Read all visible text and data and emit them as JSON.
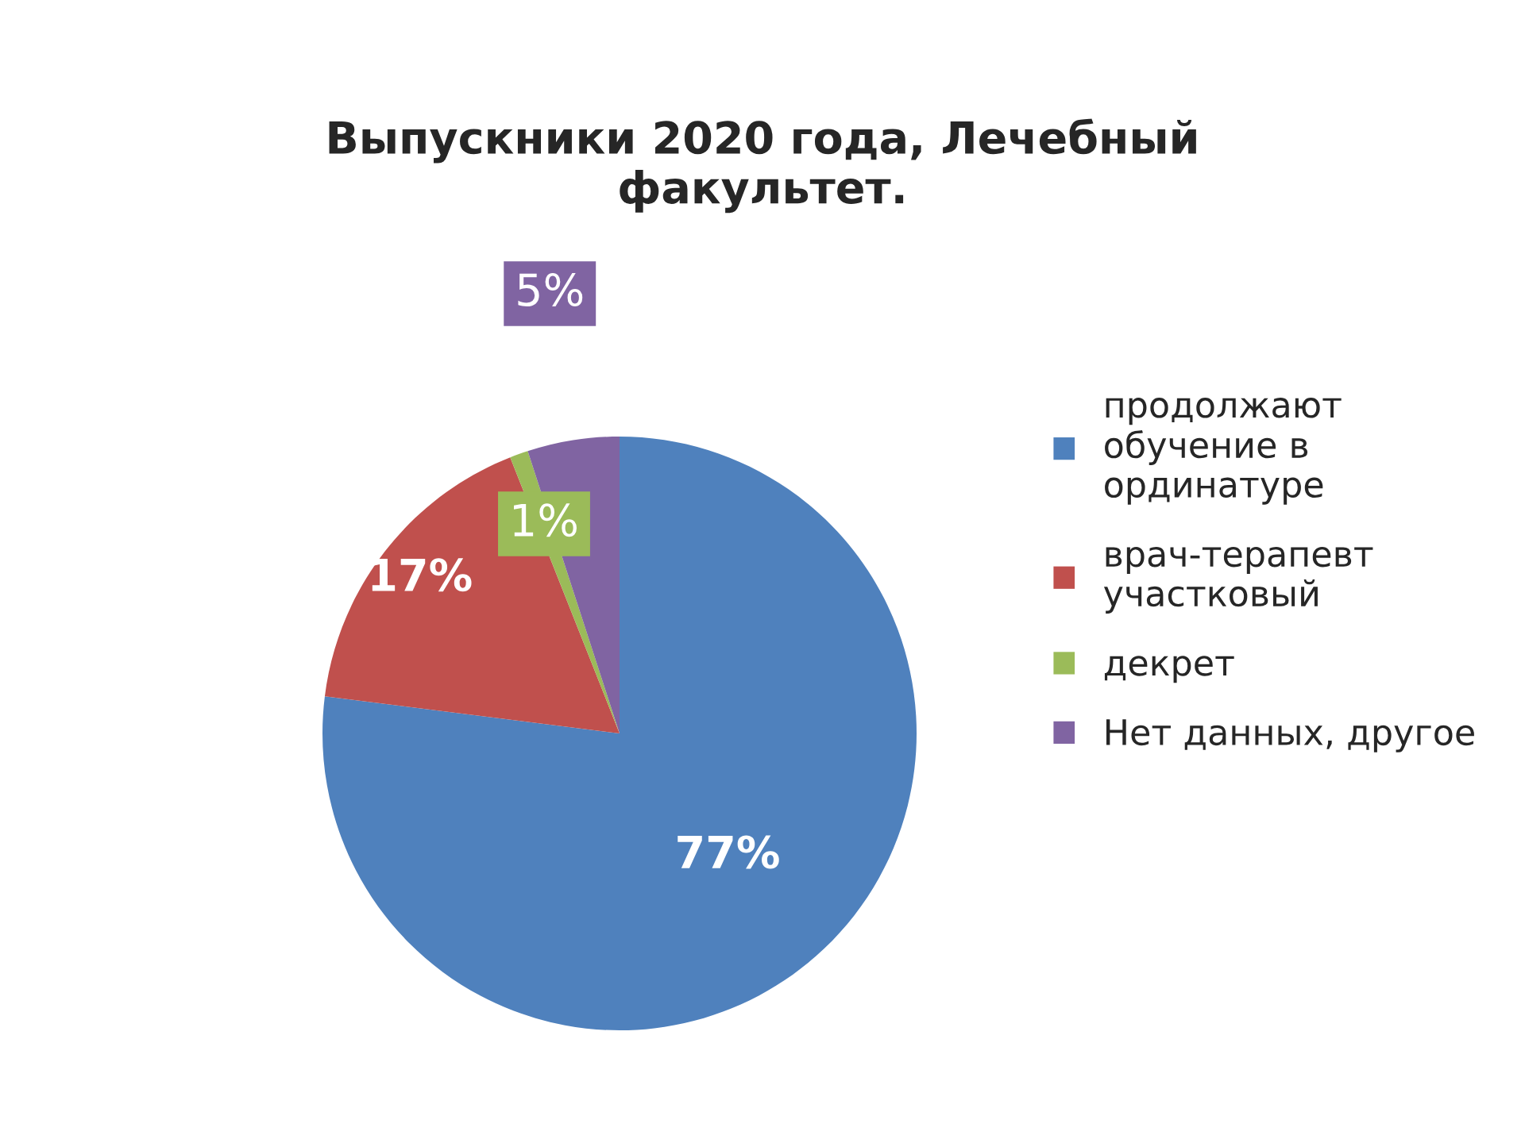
{
  "chart_data": {
    "type": "pie",
    "title": "Выпускники 2020 года, Лечебный\nфакультет.",
    "categories": [
      "продолжают\nобучение в\nординатуре",
      "врач-терапевт\nучастковый",
      "декрет",
      "Нет данных, другое"
    ],
    "values": [
      77,
      17,
      1,
      5
    ],
    "colors": [
      "#4f81bd",
      "#c0504d",
      "#9bbb59",
      "#8064a2"
    ],
    "value_labels": [
      "77%",
      "17%",
      "1%",
      "5%"
    ],
    "legend": "right"
  }
}
